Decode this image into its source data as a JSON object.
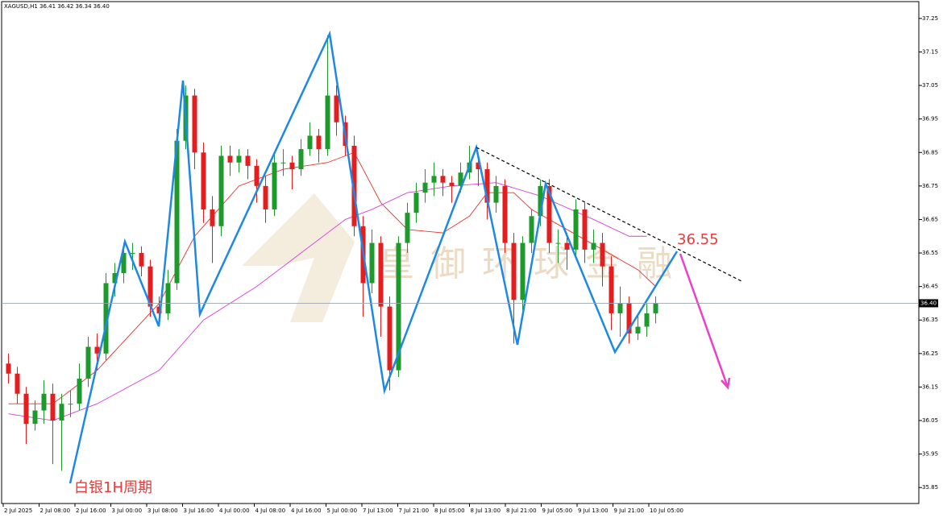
{
  "chart_data": {
    "type": "candlestick",
    "title": "XAGUSD,H1  36.41 36.42 36.34 36.40",
    "ylim": [
      35.8,
      37.305
    ],
    "yticks": [
      35.85,
      35.95,
      36.05,
      36.15,
      36.25,
      36.35,
      36.45,
      36.55,
      36.65,
      36.75,
      36.85,
      36.95,
      37.05,
      37.15,
      37.25
    ],
    "current_price": {
      "value": 36.4,
      "label": "36.40"
    },
    "x_labels": [
      "2 Jul 2025",
      "2 Jul 08:00",
      "2 Jul 16:00",
      "3 Jul 00:00",
      "3 Jul 08:00",
      "3 Jul 16:00",
      "4 Jul 00:00",
      "4 Jul 08:00",
      "4 Jul 16:00",
      "5 Jul 00:00",
      "7 Jul 13:00",
      "7 Jul 21:00",
      "8 Jul 05:00",
      "8 Jul 13:00",
      "8 Jul 21:00",
      "9 Jul 05:00",
      "9 Jul 13:00",
      "9 Jul 21:00",
      "10 Jul 05:00"
    ],
    "up_color": "#1e9a2c",
    "down_color": "#e41e1e",
    "ohlc": [
      [
        36.22,
        36.25,
        36.16,
        36.19
      ],
      [
        36.19,
        36.21,
        36.1,
        36.13
      ],
      [
        36.13,
        36.15,
        35.98,
        36.04
      ],
      [
        36.04,
        36.11,
        36.02,
        36.08
      ],
      [
        36.08,
        36.17,
        36.04,
        36.13
      ],
      [
        36.13,
        36.16,
        35.92,
        36.05
      ],
      [
        36.05,
        36.13,
        35.9,
        36.1
      ],
      [
        36.1,
        36.14,
        36.06,
        36.1
      ],
      [
        36.1,
        36.22,
        36.08,
        36.175
      ],
      [
        36.175,
        36.3,
        36.15,
        36.27
      ],
      [
        36.27,
        36.31,
        36.2,
        36.25
      ],
      [
        36.25,
        36.49,
        36.23,
        36.46
      ],
      [
        36.46,
        36.52,
        36.42,
        36.49
      ],
      [
        36.49,
        36.58,
        36.46,
        36.55
      ],
      [
        36.55,
        36.58,
        36.5,
        36.55
      ],
      [
        36.55,
        36.57,
        36.48,
        36.51
      ],
      [
        36.51,
        36.53,
        36.36,
        36.39
      ],
      [
        36.39,
        36.42,
        36.33,
        36.37
      ],
      [
        36.37,
        36.5,
        36.35,
        36.46
      ],
      [
        36.46,
        36.92,
        36.44,
        36.885
      ],
      [
        36.885,
        37.05,
        36.86,
        37.02
      ],
      [
        37.02,
        37.04,
        36.8,
        36.85
      ],
      [
        36.85,
        36.88,
        36.64,
        36.68
      ],
      [
        36.68,
        36.72,
        36.52,
        36.63
      ],
      [
        36.63,
        36.87,
        36.6,
        36.84
      ],
      [
        36.84,
        36.87,
        36.78,
        36.82
      ],
      [
        36.82,
        36.86,
        36.79,
        36.84
      ],
      [
        36.84,
        36.86,
        36.77,
        36.81
      ],
      [
        36.81,
        36.83,
        36.7,
        36.75
      ],
      [
        36.75,
        36.78,
        36.64,
        36.68
      ],
      [
        36.68,
        36.85,
        36.66,
        36.82
      ],
      [
        36.82,
        36.86,
        36.78,
        36.82
      ],
      [
        36.82,
        36.84,
        36.74,
        36.8
      ],
      [
        36.8,
        36.89,
        36.78,
        36.86
      ],
      [
        36.86,
        36.94,
        36.84,
        36.9
      ],
      [
        36.9,
        36.92,
        36.82,
        36.86
      ],
      [
        36.86,
        37.2,
        36.84,
        37.02
      ],
      [
        37.02,
        37.05,
        36.9,
        36.94
      ],
      [
        36.94,
        36.96,
        36.84,
        36.87
      ],
      [
        36.87,
        36.9,
        36.6,
        36.63
      ],
      [
        36.63,
        36.66,
        36.36,
        36.46
      ],
      [
        36.46,
        36.62,
        36.43,
        36.58
      ],
      [
        36.58,
        36.6,
        36.3,
        36.39
      ],
      [
        36.39,
        36.42,
        36.14,
        36.2
      ],
      [
        36.2,
        36.6,
        36.18,
        36.58
      ],
      [
        36.58,
        36.7,
        36.55,
        36.67
      ],
      [
        36.67,
        36.76,
        36.64,
        36.73
      ],
      [
        36.73,
        36.8,
        36.7,
        36.76
      ],
      [
        36.76,
        36.82,
        36.72,
        36.78
      ],
      [
        36.78,
        36.8,
        36.72,
        36.76
      ],
      [
        36.76,
        36.78,
        36.7,
        36.75
      ],
      [
        36.75,
        36.82,
        36.73,
        36.79
      ],
      [
        36.79,
        36.87,
        36.77,
        36.82
      ],
      [
        36.82,
        36.84,
        36.75,
        36.8
      ],
      [
        36.8,
        36.82,
        36.65,
        36.7
      ],
      [
        36.7,
        36.78,
        36.67,
        36.75
      ],
      [
        36.75,
        36.77,
        36.55,
        36.58
      ],
      [
        36.58,
        36.61,
        36.28,
        36.41
      ],
      [
        36.41,
        36.6,
        36.38,
        36.58
      ],
      [
        36.58,
        36.68,
        36.55,
        36.66
      ],
      [
        36.66,
        36.77,
        36.63,
        36.75
      ],
      [
        36.75,
        36.77,
        36.55,
        36.58
      ],
      [
        36.58,
        36.62,
        36.52,
        36.58
      ],
      [
        36.58,
        36.61,
        36.5,
        36.56
      ],
      [
        36.56,
        36.71,
        36.54,
        36.68
      ],
      [
        36.68,
        36.7,
        36.52,
        36.56
      ],
      [
        36.56,
        36.62,
        36.52,
        36.58
      ],
      [
        36.58,
        36.61,
        36.45,
        36.51
      ],
      [
        36.51,
        36.54,
        36.32,
        36.37
      ],
      [
        36.37,
        36.45,
        36.3,
        36.4
      ],
      [
        36.4,
        36.42,
        36.28,
        36.31
      ],
      [
        36.31,
        36.37,
        36.29,
        36.33
      ],
      [
        36.33,
        36.4,
        36.3,
        36.37
      ],
      [
        36.37,
        36.42,
        36.34,
        36.4
      ]
    ],
    "series": [
      {
        "color": "#e8322a",
        "x": [
          0,
          5,
          10,
          17,
          21,
          26,
          31,
          36,
          39,
          42,
          45,
          49,
          52,
          54,
          57,
          59,
          63,
          67,
          71,
          73
        ],
        "values": [
          36.1,
          36.1,
          36.2,
          36.4,
          36.6,
          36.75,
          36.8,
          36.82,
          36.85,
          36.7,
          36.62,
          36.61,
          36.66,
          36.73,
          36.73,
          36.68,
          36.62,
          36.56,
          36.5,
          36.45
        ]
      },
      {
        "color": "#d63fd6",
        "x": [
          0,
          5,
          10,
          17,
          22,
          28,
          33,
          38,
          41,
          45,
          50,
          55,
          60,
          66,
          70,
          72
        ],
        "values": [
          36.07,
          36.05,
          36.1,
          36.2,
          36.35,
          36.45,
          36.55,
          36.65,
          36.68,
          36.73,
          36.75,
          36.76,
          36.72,
          36.65,
          36.6,
          36.6
        ]
      }
    ],
    "annotations": {
      "target": "36.55",
      "period": "白银1H周期",
      "watermark": "皇御环球金融"
    }
  }
}
